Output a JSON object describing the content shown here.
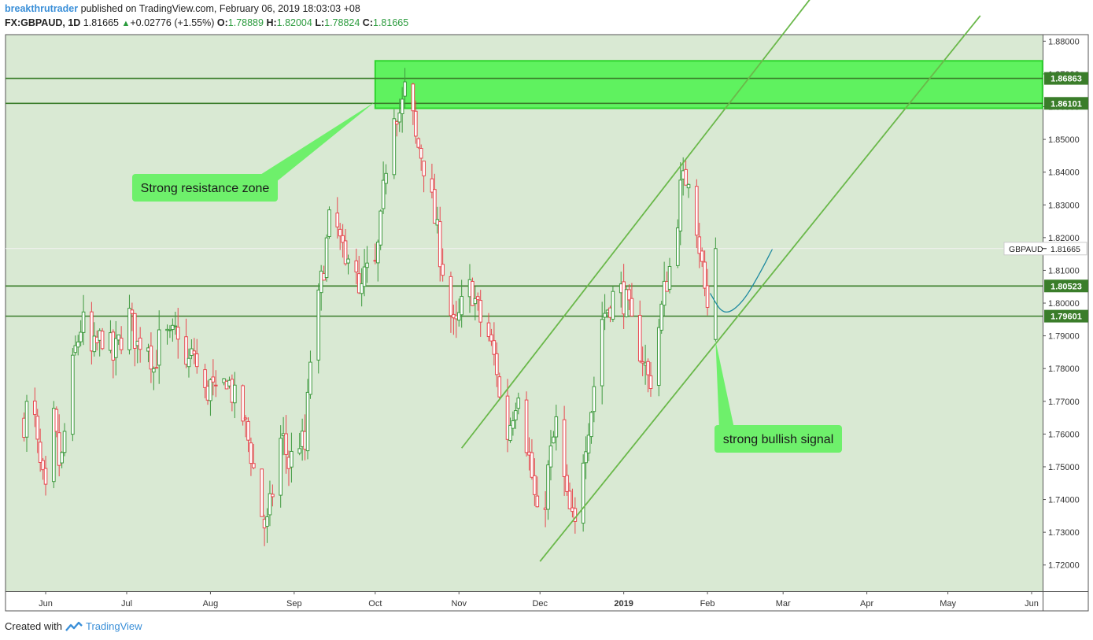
{
  "header": {
    "author": "breakthrutrader",
    "published_text": " published on TradingView.com, February 06, 2019 18:03:03 +08",
    "symbol": "FX:GBPAUD, 1D",
    "last": "1.81665",
    "change": "+0.02776 (+1.55%)",
    "o_label": "O:",
    "o_value": "1.78889",
    "h_label": "H:",
    "h_value": "1.82004",
    "l_label": "L:",
    "l_value": "1.78824",
    "c_label": "C:",
    "c_value": "1.81665"
  },
  "footer": {
    "created_with": "Created with",
    "brand": "TradingView"
  },
  "colors": {
    "background": "#d9e9d3",
    "bull": "#3f9a3f",
    "bear": "#e8474f",
    "hline": "#3a7d2a",
    "channel": "#6ab84a",
    "zone": "#5ff25f",
    "callout": "#6ef06b",
    "projection": "#1e8aa0"
  },
  "chart_data": {
    "type": "candlestick",
    "symbol": "GBPAUD",
    "timeframe": "1D",
    "ylim": [
      1.712,
      1.882
    ],
    "y_ticks": [
      "1.72000",
      "1.73000",
      "1.74000",
      "1.75000",
      "1.76000",
      "1.77000",
      "1.78000",
      "1.79000",
      "1.80000",
      "1.81000",
      "1.82000",
      "1.83000",
      "1.84000",
      "1.85000",
      "1.86000",
      "1.87000",
      "1.88000"
    ],
    "x_ticks": [
      "Jun",
      "Jul",
      "Aug",
      "Sep",
      "Oct",
      "Nov",
      "Dec",
      "2019",
      "Feb",
      "Mar",
      "Apr",
      "May",
      "Jun"
    ],
    "price_label": {
      "name": "GBPAUD",
      "value": "1.81665"
    },
    "horizontal_levels": [
      {
        "label": "1.86863",
        "value": 1.86863
      },
      {
        "label": "1.86101",
        "value": 1.86101
      },
      {
        "label": "1.80523",
        "value": 1.80523
      },
      {
        "label": "1.79601",
        "value": 1.79601
      }
    ],
    "resistance_zone": {
      "top": 1.874,
      "bottom": 1.8595,
      "from": "2018-10-01",
      "to": "2019-06-05"
    },
    "channel_lines": [
      {
        "from": [
          "2018-11-02",
          1.7557
        ],
        "to": [
          "2019-03-18",
          1.9003
        ]
      },
      {
        "from": [
          "2018-12-01",
          1.7211
        ],
        "to": [
          "2019-05-13",
          1.8878
        ]
      }
    ],
    "annotations": [
      {
        "text": "Strong resistance zone",
        "target": [
          "2018-10-01",
          1.8615
        ]
      },
      {
        "text": "strong bullish signal",
        "target": [
          "2019-02-04",
          1.7885
        ]
      }
    ],
    "projection_curve": [
      [
        "2019-02-02",
        1.803
      ],
      [
        "2019-02-07",
        1.796
      ],
      [
        "2019-02-14",
        1.8
      ],
      [
        "2019-02-21",
        1.81
      ],
      [
        "2019-02-25",
        1.8165
      ]
    ],
    "segments": [
      {
        "start": "2018-05-24",
        "end": "2018-06-20",
        "points": [
          1.764,
          1.774,
          1.752,
          1.74,
          1.765,
          1.748,
          1.77,
          1.785,
          1.795,
          1.783,
          1.787
        ]
      },
      {
        "start": "2018-06-20",
        "end": "2018-07-20",
        "points": [
          1.787,
          1.792,
          1.783,
          1.79,
          1.796,
          1.787,
          1.793,
          1.78,
          1.792,
          1.788,
          1.792
        ]
      },
      {
        "start": "2018-07-20",
        "end": "2018-08-13",
        "points": [
          1.792,
          1.78,
          1.785,
          1.77,
          1.775,
          1.768,
          1.778,
          1.77,
          1.765
        ]
      },
      {
        "start": "2018-08-13",
        "end": "2018-09-05",
        "points": [
          1.765,
          1.755,
          1.74,
          1.73,
          1.745,
          1.76,
          1.75,
          1.76,
          1.755
        ]
      },
      {
        "start": "2018-09-05",
        "end": "2018-09-30",
        "points": [
          1.755,
          1.79,
          1.8,
          1.815,
          1.83,
          1.82,
          1.81,
          1.83,
          1.8,
          1.81,
          1.805
        ]
      },
      {
        "start": "2018-09-30",
        "end": "2018-10-21",
        "points": [
          1.805,
          1.82,
          1.845,
          1.86,
          1.858,
          1.87,
          1.85,
          1.845,
          1.835
        ]
      },
      {
        "start": "2018-10-21",
        "end": "2018-11-15",
        "points": [
          1.835,
          1.82,
          1.805,
          1.79,
          1.8,
          1.805,
          1.795,
          1.79,
          1.78
        ]
      },
      {
        "start": "2018-11-15",
        "end": "2018-12-01",
        "points": [
          1.78,
          1.755,
          1.765,
          1.775,
          1.76,
          1.745,
          1.726
        ]
      },
      {
        "start": "2018-12-01",
        "end": "2018-12-30",
        "points": [
          1.726,
          1.75,
          1.765,
          1.74,
          1.73,
          1.755,
          1.77,
          1.795,
          1.8,
          1.805
        ]
      },
      {
        "start": "2018-12-30",
        "end": "2019-01-25",
        "points": [
          1.805,
          1.8,
          1.79,
          1.785,
          1.775,
          1.79,
          1.805,
          1.815,
          1.835,
          1.84
        ]
      },
      {
        "start": "2019-01-25",
        "end": "2019-02-05",
        "points": [
          1.84,
          1.83,
          1.815,
          1.8,
          1.79,
          1.8167
        ]
      }
    ]
  }
}
